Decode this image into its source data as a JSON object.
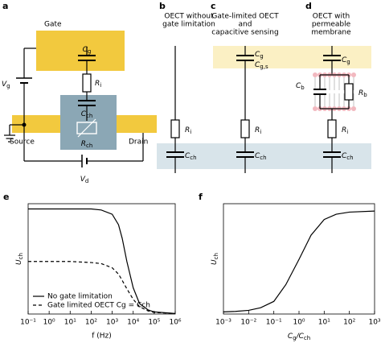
{
  "diagram": {
    "a": {
      "label": "a",
      "gate": "Gate",
      "source": "Source",
      "drain": "Drain",
      "cg": {
        "symbol": "C",
        "sub": "g"
      },
      "ri": {
        "symbol": "R",
        "sub": "i"
      },
      "cch": {
        "symbol": "C",
        "sub": "ch"
      },
      "rch": {
        "symbol": "R",
        "sub": "ch"
      },
      "vg": {
        "symbol": "V",
        "sub": "g"
      },
      "vd": {
        "symbol": "V",
        "sub": "d"
      }
    },
    "b": {
      "label": "b",
      "title": [
        "OECT without",
        "gate limitation"
      ],
      "ri": {
        "symbol": "R",
        "sub": "i"
      },
      "cch": {
        "symbol": "C",
        "sub": "ch"
      }
    },
    "c": {
      "label": "c",
      "title": [
        "Gate-limited OECT",
        "and",
        "capacitive sensing"
      ],
      "cg": {
        "symbol": "C",
        "sub": "g"
      },
      "cgs": {
        "symbol": "C",
        "sub": "g,s"
      },
      "ri": {
        "symbol": "R",
        "sub": "i"
      },
      "cch": {
        "symbol": "C",
        "sub": "ch"
      }
    },
    "d": {
      "label": "d",
      "title": [
        "OECT with",
        "permeable",
        "membrane"
      ],
      "cg": {
        "symbol": "C",
        "sub": "g"
      },
      "cb": {
        "symbol": "C",
        "sub": "b"
      },
      "rb": {
        "symbol": "R",
        "sub": "b"
      },
      "ri": {
        "symbol": "R",
        "sub": "i"
      },
      "cch": {
        "symbol": "C",
        "sub": "ch"
      }
    }
  },
  "chart_data": [
    {
      "type": "line",
      "label": "e",
      "x_log": true,
      "legend": "lower left",
      "x_label": "f (Hz)",
      "y_label": [
        {
          "symbol": "U",
          "sub": "ch"
        }
      ],
      "xlim": [
        0.1,
        1000000
      ],
      "ylim": [
        0,
        1.05
      ],
      "xticks": [
        {
          "value": 0.1,
          "label": "10⁻¹"
        },
        {
          "value": 1,
          "label": "10⁰"
        },
        {
          "value": 10,
          "label": "10¹"
        },
        {
          "value": 100,
          "label": "10²"
        },
        {
          "value": 1000,
          "label": "10³"
        },
        {
          "value": 10000,
          "label": "10⁴"
        },
        {
          "value": 100000,
          "label": "10⁵"
        },
        {
          "value": 1000000,
          "label": "10⁶"
        }
      ],
      "x": [
        0.1,
        1,
        10,
        100,
        300,
        1000,
        2000,
        3000,
        5000,
        10000,
        20000,
        50000,
        100000,
        1000000
      ],
      "series": [
        {
          "name": "No gate limitation",
          "color": "#000000",
          "dash": false,
          "values": [
            1,
            1,
            1,
            1,
            0.99,
            0.95,
            0.85,
            0.72,
            0.5,
            0.25,
            0.1,
            0.04,
            0.02,
            0.005
          ]
        },
        {
          "name": "Gate limited OECT Cg = Cch",
          "color": "#000000",
          "dash": true,
          "values": [
            0.5,
            0.5,
            0.5,
            0.49,
            0.48,
            0.44,
            0.38,
            0.32,
            0.24,
            0.14,
            0.07,
            0.03,
            0.015,
            0.005
          ]
        }
      ]
    },
    {
      "type": "line",
      "label": "f",
      "x_log": true,
      "x_label": [
        {
          "symbol": "C",
          "sub": "g"
        },
        {
          "symbol": "/C",
          "sub": "ch"
        }
      ],
      "y_label": [
        {
          "symbol": "U",
          "sub": "ch"
        }
      ],
      "xlim": [
        0.001,
        1000
      ],
      "ylim": [
        0,
        1.05
      ],
      "xticks": [
        {
          "value": 0.001,
          "label": "10⁻³"
        },
        {
          "value": 0.01,
          "label": "10⁻²"
        },
        {
          "value": 0.1,
          "label": "10⁻¹"
        },
        {
          "value": 1,
          "label": "10⁰"
        },
        {
          "value": 10,
          "label": "10¹"
        },
        {
          "value": 100,
          "label": "10²"
        },
        {
          "value": 1000,
          "label": "10³"
        }
      ],
      "x": [
        0.001,
        0.003,
        0.01,
        0.03,
        0.1,
        0.3,
        1,
        3,
        10,
        30,
        100,
        1000
      ],
      "series": [
        {
          "color": "#000000",
          "dash": false,
          "values": [
            0.02,
            0.025,
            0.035,
            0.06,
            0.12,
            0.28,
            0.52,
            0.75,
            0.9,
            0.95,
            0.97,
            0.98
          ]
        }
      ]
    }
  ]
}
